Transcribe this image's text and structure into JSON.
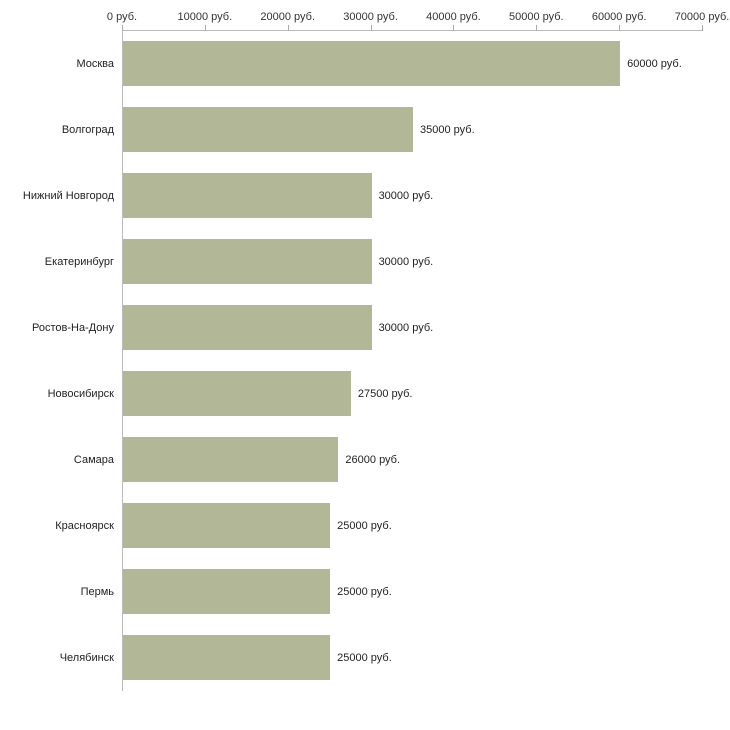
{
  "chart_data": {
    "type": "bar",
    "orientation": "horizontal",
    "title": "",
    "categories": [
      "Москва",
      "Волгоград",
      "Нижний Новгород",
      "Екатеринбург",
      "Ростов-На-Дону",
      "Новосибирск",
      "Самара",
      "Красноярск",
      "Пермь",
      "Челябинск"
    ],
    "values": [
      60000,
      35000,
      30000,
      30000,
      30000,
      27500,
      26000,
      25000,
      25000,
      25000
    ],
    "value_labels": [
      "60000 руб.",
      "35000 руб.",
      "30000 руб.",
      "30000 руб.",
      "30000 руб.",
      "27500 руб.",
      "26000 руб.",
      "25000 руб.",
      "25000 руб.",
      "25000 руб."
    ],
    "xlabel": "",
    "ylabel": "",
    "x_axis": {
      "position": "top",
      "min": 0,
      "max": 70000,
      "ticks": [
        0,
        10000,
        20000,
        30000,
        40000,
        50000,
        60000,
        70000
      ],
      "tick_labels": [
        "0 руб.",
        "10000 руб.",
        "20000 руб.",
        "30000 руб.",
        "40000 руб.",
        "50000 руб.",
        "60000 руб.",
        "70000 руб."
      ]
    },
    "bar_color": "#b2b897",
    "grid": false,
    "legend": false,
    "background_color": "#ffffff"
  }
}
